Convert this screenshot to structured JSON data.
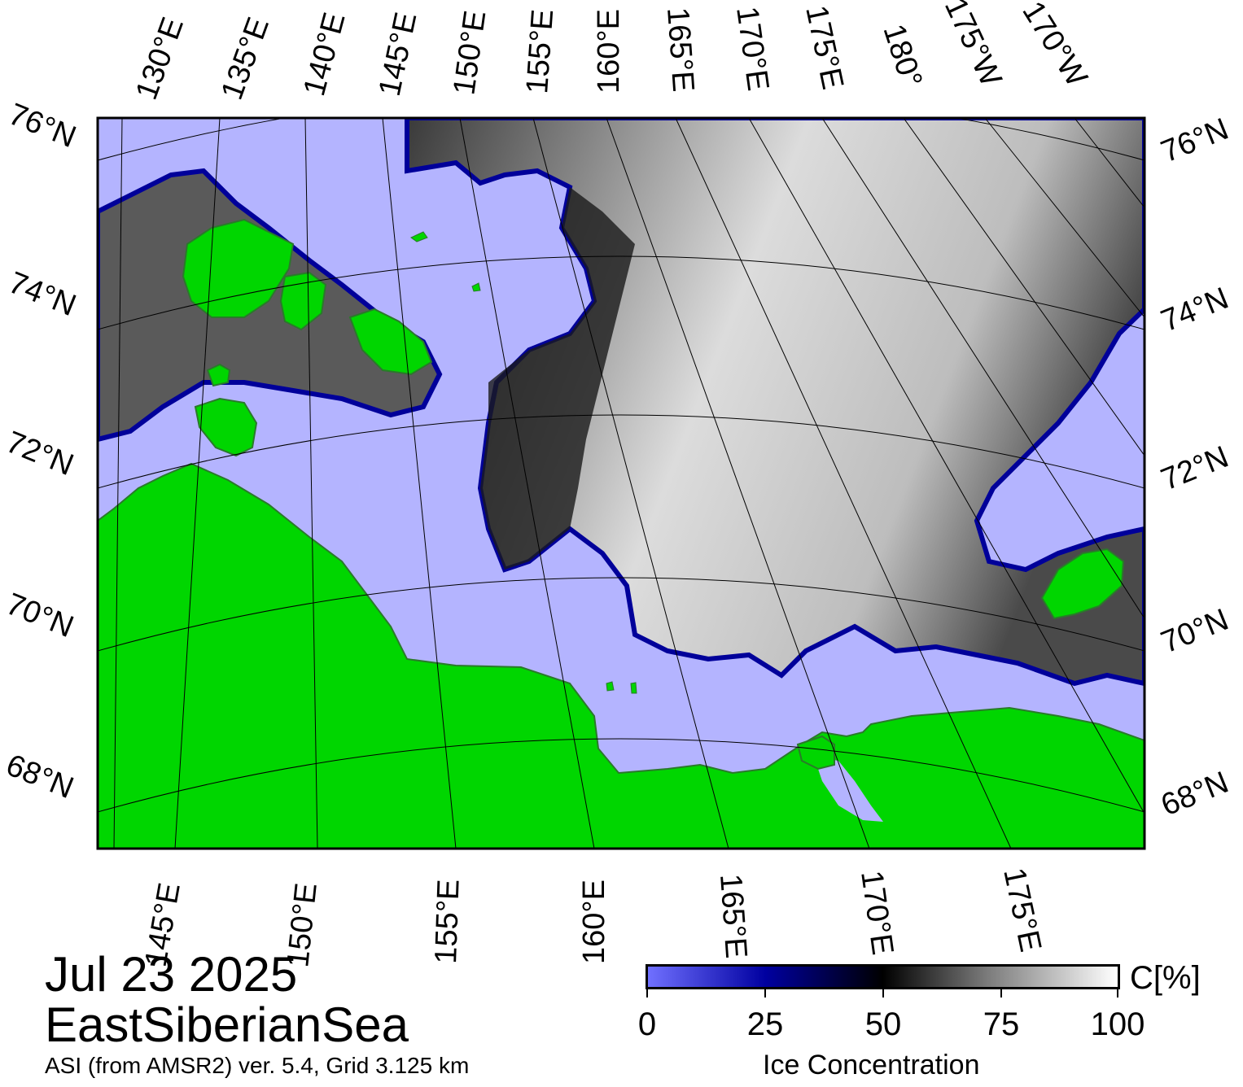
{
  "map": {
    "region": "EastSiberianSea",
    "date": "Jul 23 2025",
    "source": "ASI (from AMSR2) ver. 5.4,  Grid 3.125 km",
    "colors": {
      "land": "#00d600",
      "open_water": "#b4b4ff",
      "ice_low": "#0000a0",
      "ice_mid": "#000000",
      "ice_high": "#ffffff",
      "frame": "#000000"
    },
    "top_lon_labels": [
      "130°E",
      "135°E",
      "140°E",
      "145°E",
      "150°E",
      "155°E",
      "160°E",
      "165°E",
      "170°E",
      "175°E",
      "180°",
      "175°W",
      "170°W"
    ],
    "bottom_lon_labels": [
      "145°E",
      "150°E",
      "155°E",
      "160°E",
      "165°E",
      "170°E",
      "175°E"
    ],
    "lat_labels": [
      "76°N",
      "74°N",
      "72°N",
      "70°N",
      "68°N"
    ]
  },
  "colorbar": {
    "title": "Ice Concentration",
    "unit": "C[%]",
    "ticks": [
      "0",
      "25",
      "50",
      "75",
      "100"
    ],
    "range": [
      0,
      100
    ]
  }
}
